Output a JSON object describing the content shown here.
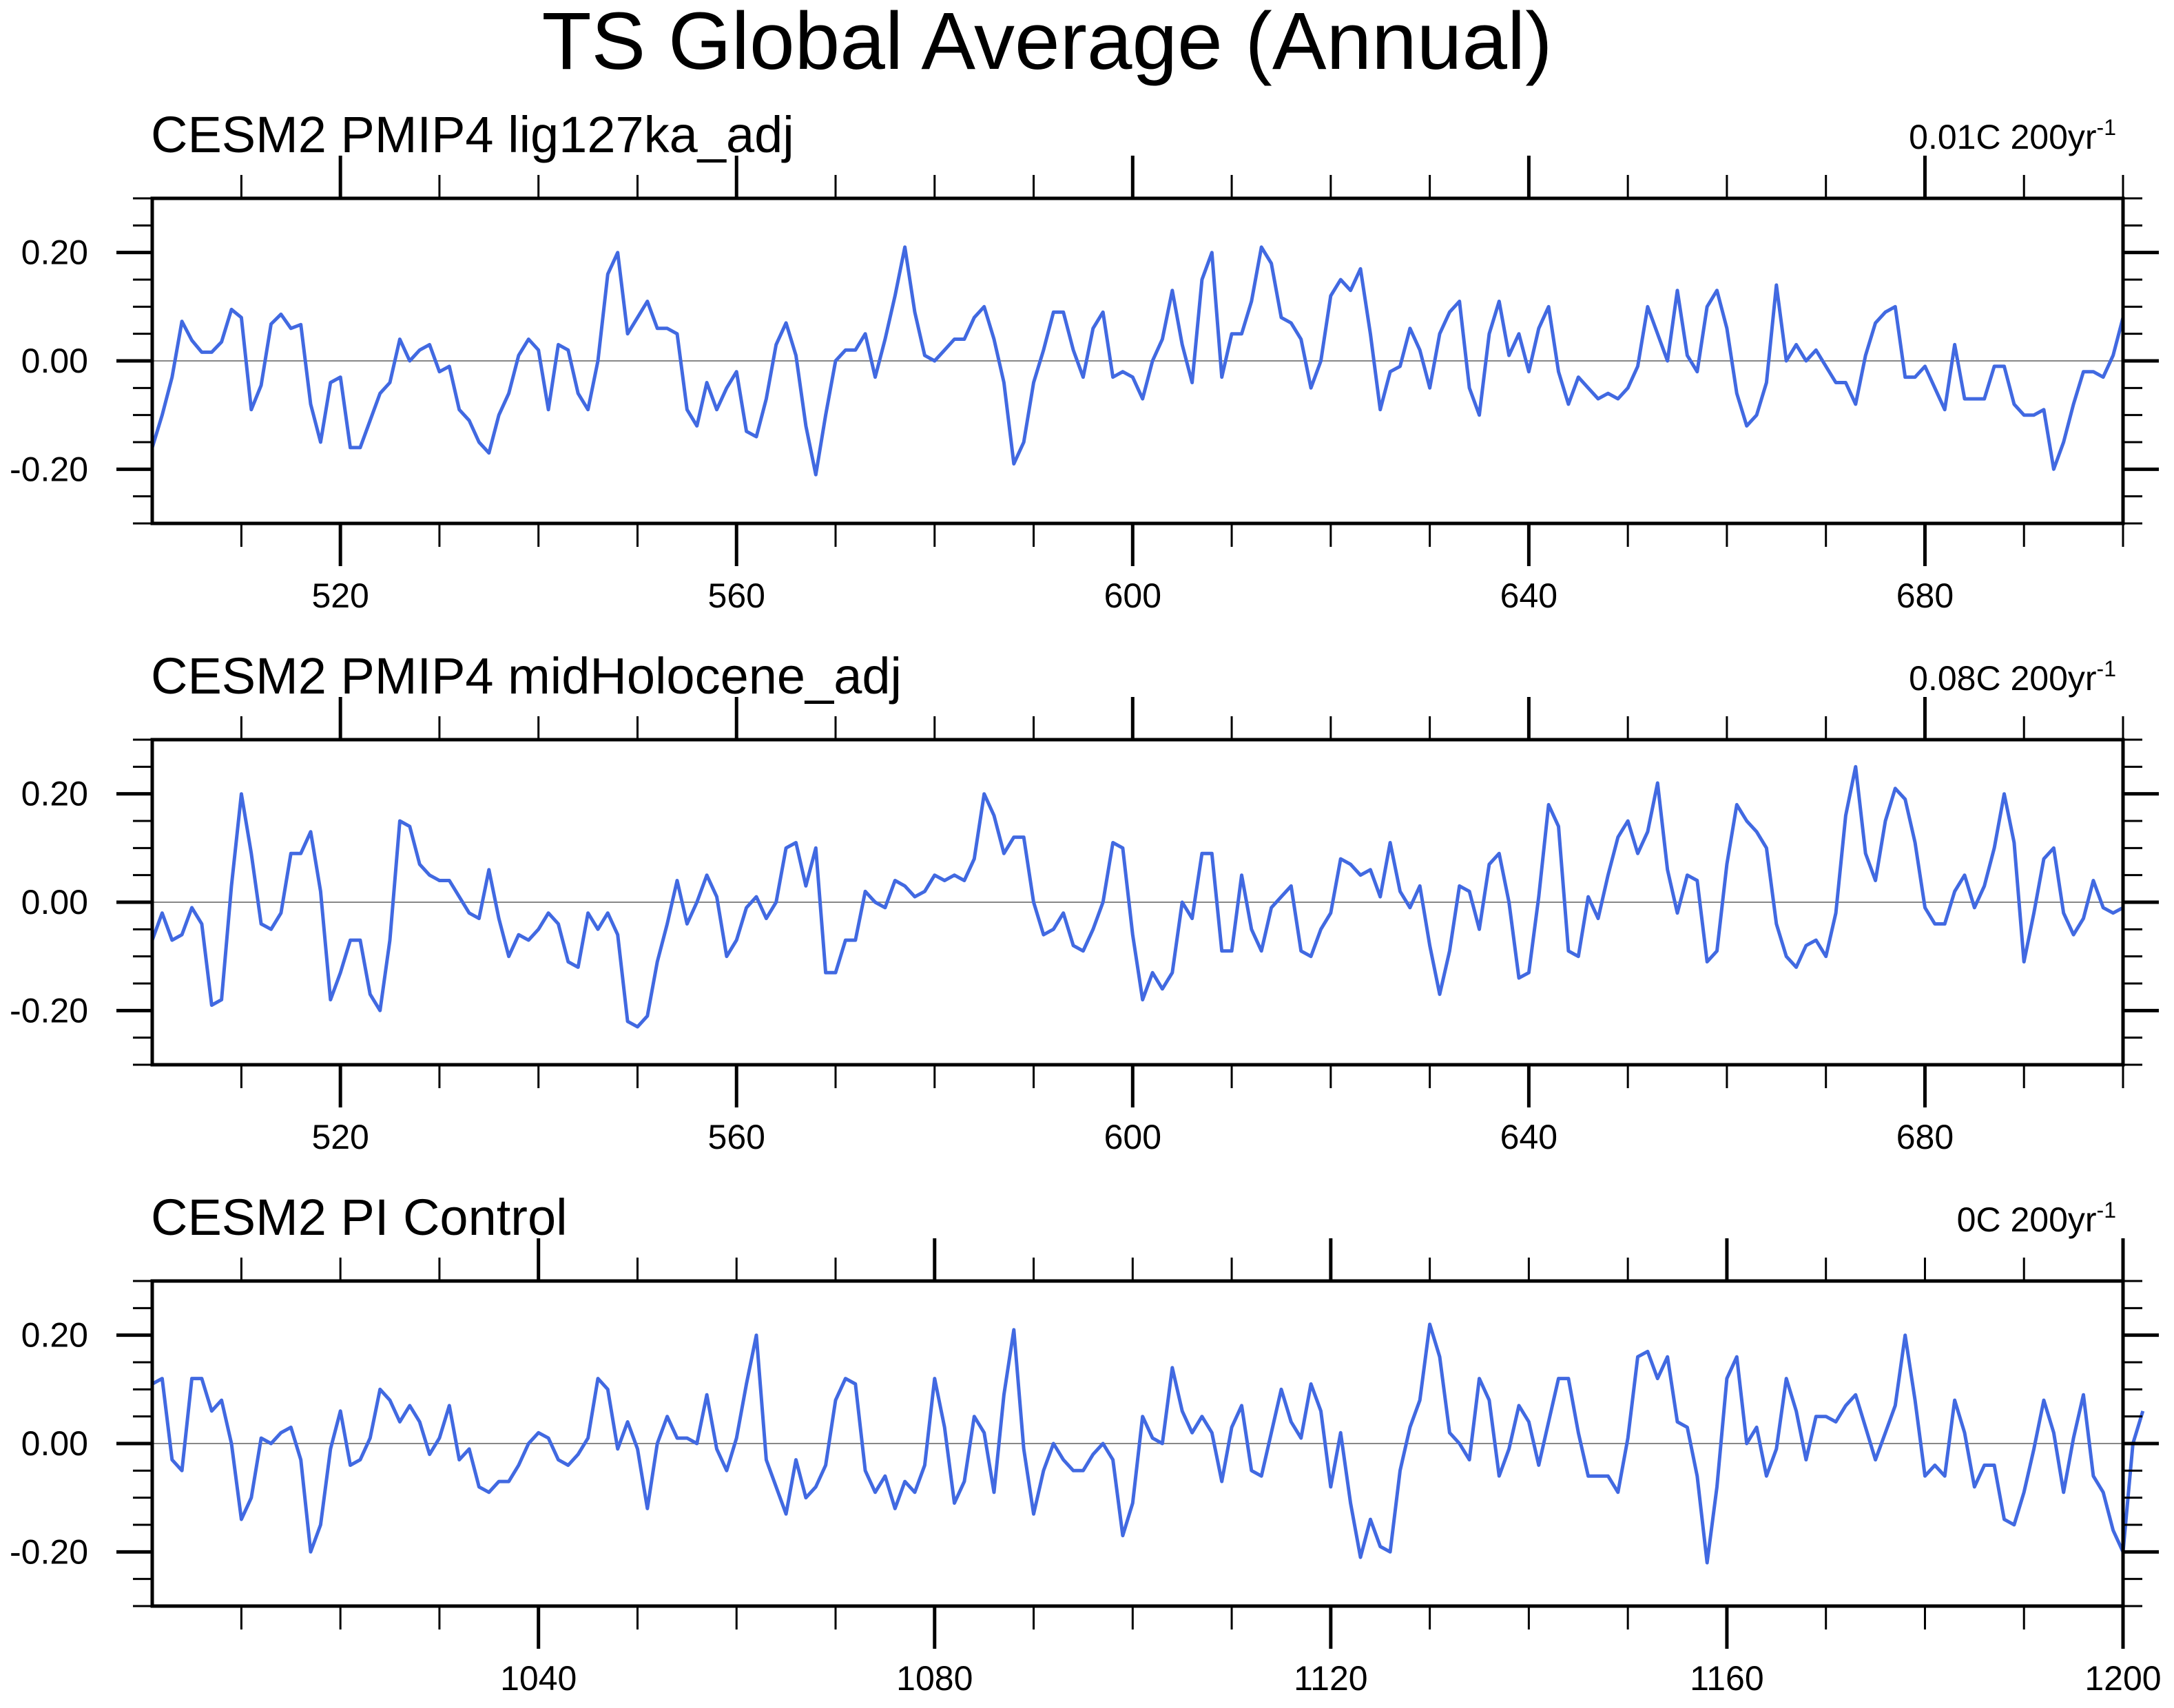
{
  "title": "TS Global Average (Annual)",
  "chart_data": [
    {
      "type": "line",
      "title": "CESM2 PMIP4 lig127ka_adj",
      "trend_label": "0.01C 200yr",
      "trend_sup": "-1",
      "xlim": [
        501,
        700
      ],
      "ylim": [
        -0.3,
        0.3
      ],
      "x_ticks": [
        520,
        560,
        600,
        640,
        680
      ],
      "y_ticks": [
        -0.2,
        0.0,
        0.2
      ],
      "y_tick_labels": [
        "-0.20",
        "0.00",
        "0.20"
      ],
      "grid": false,
      "reference_line": 0,
      "line_color": "#4169e1",
      "series": [
        {
          "x_start": 501,
          "values": [
            -0.16,
            -0.1,
            -0.03,
            0.073,
            0.038,
            0.016,
            0.016,
            0.035,
            0.095,
            0.08,
            -0.09,
            -0.045,
            0.068,
            0.086,
            0.06,
            0.067,
            -0.08,
            -0.15,
            -0.04,
            -0.03,
            -0.16,
            -0.16,
            -0.11,
            -0.06,
            -0.04,
            0.04,
            0.0,
            0.02,
            0.03,
            -0.02,
            -0.01,
            -0.09,
            -0.11,
            -0.15,
            -0.17,
            -0.1,
            -0.06,
            0.01,
            0.04,
            0.02,
            -0.09,
            0.03,
            0.02,
            -0.06,
            -0.09,
            0.0,
            0.16,
            0.2,
            0.05,
            0.08,
            0.11,
            0.06,
            0.06,
            0.05,
            -0.09,
            -0.12,
            -0.04,
            -0.09,
            -0.05,
            -0.02,
            -0.13,
            -0.14,
            -0.07,
            0.03,
            0.07,
            0.01,
            -0.12,
            -0.21,
            -0.1,
            0.0,
            0.02,
            0.02,
            0.05,
            -0.03,
            0.04,
            0.12,
            0.21,
            0.09,
            0.01,
            0.0,
            0.02,
            0.04,
            0.04,
            0.08,
            0.1,
            0.04,
            -0.04,
            -0.19,
            -0.15,
            -0.04,
            0.02,
            0.09,
            0.09,
            0.02,
            -0.03,
            0.06,
            0.09,
            -0.03,
            -0.02,
            -0.03,
            -0.07,
            0.0,
            0.04,
            0.13,
            0.03,
            -0.04,
            0.15,
            0.2,
            -0.03,
            0.05,
            0.05,
            0.11,
            0.21,
            0.18,
            0.08,
            0.07,
            0.04,
            -0.05,
            0.0,
            0.12,
            0.15,
            0.13,
            0.17,
            0.05,
            -0.09,
            -0.02,
            -0.01,
            0.06,
            0.02,
            -0.05,
            0.05,
            0.09,
            0.11,
            -0.05,
            -0.1,
            0.05,
            0.11,
            0.01,
            0.05,
            -0.02,
            0.06,
            0.1,
            -0.02,
            -0.08,
            -0.03,
            -0.05,
            -0.07,
            -0.06,
            -0.07,
            -0.05,
            -0.01,
            0.1,
            0.05,
            0.0,
            0.13,
            0.01,
            -0.02,
            0.1,
            0.13,
            0.06,
            -0.06,
            -0.12,
            -0.1,
            -0.04,
            0.14,
            0.0,
            0.03,
            0.0,
            0.02,
            -0.01,
            -0.04,
            -0.04,
            -0.08,
            0.01,
            0.07,
            0.09,
            0.1,
            -0.03,
            -0.03,
            -0.01,
            -0.05,
            -0.09,
            0.03,
            -0.07,
            -0.07,
            -0.07,
            -0.01,
            -0.01,
            -0.08,
            -0.1,
            -0.1,
            -0.09,
            -0.2,
            -0.15,
            -0.08,
            -0.02,
            -0.02,
            -0.03,
            0.01,
            0.08
          ]
        }
      ]
    },
    {
      "type": "line",
      "title": "CESM2 PMIP4 midHolocene_adj",
      "trend_label": "0.08C 200yr",
      "trend_sup": "-1",
      "xlim": [
        501,
        700
      ],
      "ylim": [
        -0.3,
        0.3
      ],
      "x_ticks": [
        520,
        560,
        600,
        640,
        680
      ],
      "y_ticks": [
        -0.2,
        0.0,
        0.2
      ],
      "y_tick_labels": [
        "-0.20",
        "0.00",
        "0.20"
      ],
      "grid": false,
      "reference_line": 0,
      "line_color": "#4169e1",
      "series": [
        {
          "x_start": 501,
          "values": [
            -0.07,
            -0.02,
            -0.07,
            -0.06,
            -0.01,
            -0.04,
            -0.19,
            -0.18,
            0.03,
            0.2,
            0.09,
            -0.04,
            -0.05,
            -0.02,
            0.09,
            0.09,
            0.13,
            0.02,
            -0.18,
            -0.13,
            -0.07,
            -0.07,
            -0.17,
            -0.2,
            -0.07,
            0.15,
            0.14,
            0.07,
            0.05,
            0.04,
            0.04,
            0.01,
            -0.02,
            -0.03,
            0.06,
            -0.03,
            -0.1,
            -0.06,
            -0.07,
            -0.05,
            -0.02,
            -0.04,
            -0.11,
            -0.12,
            -0.02,
            -0.05,
            -0.02,
            -0.06,
            -0.22,
            -0.23,
            -0.21,
            -0.11,
            -0.04,
            0.04,
            -0.04,
            0.0,
            0.05,
            0.01,
            -0.1,
            -0.07,
            -0.01,
            0.01,
            -0.03,
            0.0,
            0.1,
            0.11,
            0.03,
            0.1,
            -0.13,
            -0.13,
            -0.07,
            -0.07,
            0.02,
            0.0,
            -0.01,
            0.04,
            0.03,
            0.01,
            0.02,
            0.05,
            0.04,
            0.05,
            0.04,
            0.08,
            0.2,
            0.16,
            0.09,
            0.12,
            0.12,
            0.0,
            -0.06,
            -0.05,
            -0.02,
            -0.08,
            -0.09,
            -0.05,
            0.0,
            0.11,
            0.1,
            -0.06,
            -0.18,
            -0.13,
            -0.16,
            -0.13,
            0.0,
            -0.03,
            0.09,
            0.09,
            -0.09,
            -0.09,
            0.05,
            -0.05,
            -0.09,
            -0.01,
            0.01,
            0.03,
            -0.09,
            -0.1,
            -0.05,
            -0.02,
            0.08,
            0.07,
            0.05,
            0.06,
            0.01,
            0.11,
            0.02,
            -0.01,
            0.03,
            -0.08,
            -0.17,
            -0.09,
            0.03,
            0.02,
            -0.05,
            0.07,
            0.09,
            0.0,
            -0.14,
            -0.13,
            0.01,
            0.18,
            0.14,
            -0.09,
            -0.1,
            0.01,
            -0.03,
            0.05,
            0.12,
            0.15,
            0.09,
            0.13,
            0.22,
            0.06,
            -0.02,
            0.05,
            0.04,
            -0.11,
            -0.09,
            0.07,
            0.18,
            0.15,
            0.13,
            0.1,
            -0.04,
            -0.1,
            -0.12,
            -0.08,
            -0.07,
            -0.1,
            -0.02,
            0.16,
            0.25,
            0.09,
            0.04,
            0.15,
            0.21,
            0.19,
            0.11,
            -0.01,
            -0.04,
            -0.04,
            0.02,
            0.05,
            -0.01,
            0.03,
            0.1,
            0.2,
            0.11,
            -0.11,
            -0.02,
            0.08,
            0.1,
            -0.02,
            -0.06,
            -0.03,
            0.04,
            -0.01,
            -0.02,
            -0.01
          ]
        }
      ]
    },
    {
      "type": "line",
      "title": "CESM2 PI Control",
      "trend_label": "0C 200yr",
      "trend_sup": "-1",
      "xlim": [
        1001,
        1200
      ],
      "ylim": [
        -0.3,
        0.3
      ],
      "x_ticks": [
        1040,
        1080,
        1120,
        1160,
        1200
      ],
      "y_ticks": [
        -0.2,
        0.0,
        0.2
      ],
      "y_tick_labels": [
        "-0.20",
        "0.00",
        "0.20"
      ],
      "grid": false,
      "reference_line": 0,
      "line_color": "#4169e1",
      "series": [
        {
          "x_start": 1001,
          "values": [
            0.11,
            0.12,
            -0.03,
            -0.05,
            0.12,
            0.12,
            0.06,
            0.08,
            0.0,
            -0.14,
            -0.1,
            0.01,
            0.0,
            0.02,
            0.03,
            -0.03,
            -0.2,
            -0.15,
            -0.01,
            0.06,
            -0.04,
            -0.03,
            0.01,
            0.1,
            0.08,
            0.04,
            0.07,
            0.04,
            -0.02,
            0.01,
            0.07,
            -0.03,
            -0.01,
            -0.08,
            -0.09,
            -0.07,
            -0.07,
            -0.04,
            0.0,
            0.02,
            0.01,
            -0.03,
            -0.04,
            -0.02,
            0.01,
            0.12,
            0.1,
            -0.01,
            0.04,
            -0.01,
            -0.12,
            0.0,
            0.05,
            0.01,
            0.01,
            0.0,
            0.09,
            -0.01,
            -0.05,
            0.01,
            0.11,
            0.2,
            -0.03,
            -0.08,
            -0.13,
            -0.03,
            -0.1,
            -0.08,
            -0.04,
            0.08,
            0.12,
            0.11,
            -0.05,
            -0.09,
            -0.06,
            -0.12,
            -0.07,
            -0.09,
            -0.04,
            0.12,
            0.03,
            -0.11,
            -0.07,
            0.05,
            0.02,
            -0.09,
            0.09,
            0.21,
            -0.01,
            -0.13,
            -0.05,
            0.0,
            -0.03,
            -0.05,
            -0.05,
            -0.02,
            0.0,
            -0.03,
            -0.17,
            -0.11,
            0.05,
            0.01,
            0.0,
            0.14,
            0.06,
            0.02,
            0.05,
            0.02,
            -0.07,
            0.03,
            0.07,
            -0.05,
            -0.06,
            0.02,
            0.1,
            0.04,
            0.01,
            0.11,
            0.06,
            -0.08,
            0.02,
            -0.11,
            -0.21,
            -0.14,
            -0.19,
            -0.2,
            -0.05,
            0.03,
            0.08,
            0.22,
            0.16,
            0.02,
            0.0,
            -0.03,
            0.12,
            0.08,
            -0.06,
            -0.01,
            0.07,
            0.04,
            -0.04,
            0.04,
            0.12,
            0.12,
            0.02,
            -0.06,
            -0.06,
            -0.06,
            -0.09,
            0.01,
            0.16,
            0.17,
            0.12,
            0.16,
            0.04,
            0.03,
            -0.06,
            -0.22,
            -0.08,
            0.12,
            0.16,
            0.0,
            0.03,
            -0.06,
            -0.01,
            0.12,
            0.06,
            -0.03,
            0.05,
            0.05,
            0.04,
            0.07,
            0.09,
            0.03,
            -0.03,
            0.02,
            0.07,
            0.2,
            0.08,
            -0.06,
            -0.04,
            -0.06,
            0.08,
            0.02,
            -0.08,
            -0.04,
            -0.04,
            -0.14,
            -0.15,
            -0.09,
            -0.01,
            0.08,
            0.02,
            -0.09,
            0.01,
            0.09,
            -0.06,
            -0.09,
            -0.16,
            -0.2,
            0.0,
            0.06
          ]
        }
      ]
    }
  ]
}
